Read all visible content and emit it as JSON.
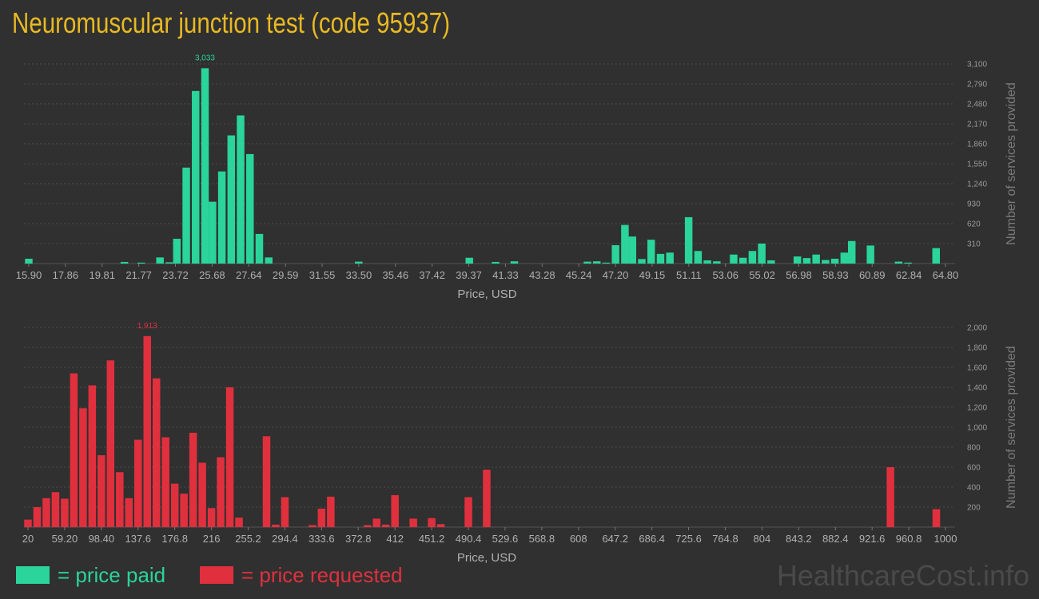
{
  "title": "Neuromuscular junction test (code 95937)",
  "legend": {
    "paid": "= price paid",
    "requested": "= price requested"
  },
  "watermark": "HealthcareCost.info",
  "colors": {
    "paid": "#2ad49a",
    "requested": "#e0303e",
    "title": "#e8b923",
    "background": "#303030"
  },
  "chart_data": [
    {
      "type": "bar",
      "series_color": "#2ad49a",
      "xlabel": "Price, USD",
      "ylabel": "Number of services provided",
      "xlim": [
        15.9,
        64.8
      ],
      "ylim": [
        0,
        3100
      ],
      "bin_width": 0.4888,
      "x_ticks": [
        "15.90",
        "17.86",
        "19.81",
        "21.77",
        "23.72",
        "25.68",
        "27.64",
        "29.59",
        "31.55",
        "33.50",
        "35.46",
        "37.42",
        "39.37",
        "41.33",
        "43.28",
        "45.24",
        "47.20",
        "49.15",
        "51.11",
        "53.06",
        "55.02",
        "56.98",
        "58.93",
        "60.89",
        "62.84",
        "64.80"
      ],
      "y_ticks": [
        "310",
        "620",
        "930",
        "1,240",
        "1,550",
        "1,860",
        "2,170",
        "2,480",
        "2,790",
        "3,100"
      ],
      "max_label": "3,033",
      "bars": [
        {
          "x": 15.9,
          "y": 75
        },
        {
          "x": 21.0,
          "y": 25
        },
        {
          "x": 21.9,
          "y": 15
        },
        {
          "x": 22.9,
          "y": 95
        },
        {
          "x": 23.4,
          "y": 20
        },
        {
          "x": 23.8,
          "y": 385
        },
        {
          "x": 24.3,
          "y": 1490
        },
        {
          "x": 24.8,
          "y": 2680
        },
        {
          "x": 25.3,
          "y": 3033
        },
        {
          "x": 25.7,
          "y": 960
        },
        {
          "x": 26.2,
          "y": 1430
        },
        {
          "x": 26.7,
          "y": 1990
        },
        {
          "x": 27.2,
          "y": 2300
        },
        {
          "x": 27.7,
          "y": 1700
        },
        {
          "x": 28.2,
          "y": 460
        },
        {
          "x": 28.7,
          "y": 95
        },
        {
          "x": 33.5,
          "y": 30
        },
        {
          "x": 39.4,
          "y": 90
        },
        {
          "x": 40.8,
          "y": 25
        },
        {
          "x": 41.8,
          "y": 35
        },
        {
          "x": 45.7,
          "y": 30
        },
        {
          "x": 46.2,
          "y": 35
        },
        {
          "x": 46.7,
          "y": 15
        },
        {
          "x": 47.2,
          "y": 285
        },
        {
          "x": 47.7,
          "y": 600
        },
        {
          "x": 48.1,
          "y": 420
        },
        {
          "x": 48.6,
          "y": 70
        },
        {
          "x": 49.1,
          "y": 370
        },
        {
          "x": 49.6,
          "y": 150
        },
        {
          "x": 50.1,
          "y": 170
        },
        {
          "x": 51.1,
          "y": 720
        },
        {
          "x": 51.6,
          "y": 195
        },
        {
          "x": 52.1,
          "y": 50
        },
        {
          "x": 52.6,
          "y": 35
        },
        {
          "x": 53.5,
          "y": 140
        },
        {
          "x": 54.0,
          "y": 90
        },
        {
          "x": 54.5,
          "y": 195
        },
        {
          "x": 55.0,
          "y": 310
        },
        {
          "x": 55.5,
          "y": 50
        },
        {
          "x": 56.9,
          "y": 110
        },
        {
          "x": 57.4,
          "y": 85
        },
        {
          "x": 57.9,
          "y": 140
        },
        {
          "x": 58.4,
          "y": 55
        },
        {
          "x": 58.9,
          "y": 75
        },
        {
          "x": 59.4,
          "y": 170
        },
        {
          "x": 59.8,
          "y": 350
        },
        {
          "x": 60.8,
          "y": 280
        },
        {
          "x": 62.3,
          "y": 30
        },
        {
          "x": 62.8,
          "y": 15
        },
        {
          "x": 64.3,
          "y": 240
        }
      ]
    },
    {
      "type": "bar",
      "series_color": "#e0303e",
      "xlabel": "Price, USD",
      "ylabel": "Number of services provided",
      "xlim": [
        20,
        1000
      ],
      "ylim": [
        0,
        2000
      ],
      "bin_width": 9.8,
      "x_ticks": [
        "20",
        "59.20",
        "98.40",
        "137.6",
        "176.8",
        "216",
        "255.2",
        "294.4",
        "333.6",
        "372.8",
        "412",
        "451.2",
        "490.4",
        "529.6",
        "568.8",
        "608",
        "647.2",
        "686.4",
        "725.6",
        "764.8",
        "804",
        "843.2",
        "882.4",
        "921.6",
        "960.8",
        "1000"
      ],
      "y_ticks": [
        "200",
        "400",
        "600",
        "800",
        "1,000",
        "1,200",
        "1,400",
        "1,600",
        "1,800",
        "2,000"
      ],
      "max_label": "1,913",
      "bars": [
        {
          "x": 20,
          "y": 75
        },
        {
          "x": 29.8,
          "y": 200
        },
        {
          "x": 39.6,
          "y": 290
        },
        {
          "x": 49.4,
          "y": 350
        },
        {
          "x": 59.2,
          "y": 285
        },
        {
          "x": 69.0,
          "y": 1540
        },
        {
          "x": 78.8,
          "y": 1190
        },
        {
          "x": 88.6,
          "y": 1420
        },
        {
          "x": 98.4,
          "y": 720
        },
        {
          "x": 108.2,
          "y": 1670
        },
        {
          "x": 118.0,
          "y": 550
        },
        {
          "x": 127.8,
          "y": 290
        },
        {
          "x": 137.6,
          "y": 875
        },
        {
          "x": 147.4,
          "y": 1913
        },
        {
          "x": 157.2,
          "y": 1490
        },
        {
          "x": 167.0,
          "y": 900
        },
        {
          "x": 176.8,
          "y": 435
        },
        {
          "x": 186.6,
          "y": 335
        },
        {
          "x": 196.4,
          "y": 945
        },
        {
          "x": 206.2,
          "y": 645
        },
        {
          "x": 216.0,
          "y": 190
        },
        {
          "x": 225.8,
          "y": 700
        },
        {
          "x": 235.6,
          "y": 1400
        },
        {
          "x": 245.4,
          "y": 95
        },
        {
          "x": 274.8,
          "y": 910
        },
        {
          "x": 284.6,
          "y": 25
        },
        {
          "x": 294.4,
          "y": 300
        },
        {
          "x": 323.8,
          "y": 20
        },
        {
          "x": 333.6,
          "y": 185
        },
        {
          "x": 343.4,
          "y": 305
        },
        {
          "x": 382.6,
          "y": 20
        },
        {
          "x": 392.4,
          "y": 85
        },
        {
          "x": 402.2,
          "y": 25
        },
        {
          "x": 412.0,
          "y": 320
        },
        {
          "x": 431.6,
          "y": 85
        },
        {
          "x": 451.2,
          "y": 90
        },
        {
          "x": 461.0,
          "y": 30
        },
        {
          "x": 490.4,
          "y": 300
        },
        {
          "x": 510.0,
          "y": 575
        },
        {
          "x": 941.2,
          "y": 600
        },
        {
          "x": 990.2,
          "y": 180
        }
      ]
    }
  ]
}
